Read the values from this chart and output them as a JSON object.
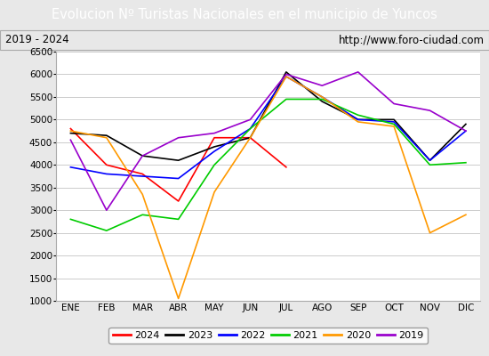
{
  "title": "Evolucion Nº Turistas Nacionales en el municipio de Yuncos",
  "subtitle_left": "2019 - 2024",
  "subtitle_right": "http://www.foro-ciudad.com",
  "title_bg_color": "#4472c4",
  "title_text_color": "#ffffff",
  "months": [
    "ENE",
    "FEB",
    "MAR",
    "ABR",
    "MAY",
    "JUN",
    "JUL",
    "AGO",
    "SEP",
    "OCT",
    "NOV",
    "DIC"
  ],
  "ylim": [
    1000,
    6500
  ],
  "yticks": [
    1000,
    1500,
    2000,
    2500,
    3000,
    3500,
    4000,
    4500,
    5000,
    5500,
    6000,
    6500
  ],
  "series": {
    "2024": {
      "color": "#ff0000",
      "values": [
        4800,
        4000,
        3800,
        3200,
        4600,
        4600,
        3950,
        null,
        null,
        null,
        null,
        null
      ]
    },
    "2023": {
      "color": "#000000",
      "values": [
        4700,
        4650,
        4200,
        4100,
        4400,
        4600,
        6050,
        5400,
        5000,
        5000,
        4100,
        4900
      ]
    },
    "2022": {
      "color": "#0000ff",
      "values": [
        3950,
        3800,
        3750,
        3700,
        4300,
        4800,
        5950,
        5500,
        5000,
        4950,
        4100,
        4750
      ]
    },
    "2021": {
      "color": "#00cc00",
      "values": [
        2800,
        2550,
        2900,
        2800,
        4000,
        4800,
        5450,
        5450,
        5100,
        4900,
        4000,
        4050
      ]
    },
    "2020": {
      "color": "#ff9900",
      "values": [
        4750,
        4600,
        3350,
        1050,
        3400,
        4600,
        5950,
        5500,
        4950,
        4850,
        2500,
        2900
      ]
    },
    "2019": {
      "color": "#9900cc",
      "values": [
        4550,
        3000,
        4200,
        4600,
        4700,
        5000,
        6000,
        5750,
        6050,
        5350,
        5200,
        4750
      ]
    }
  },
  "legend_order": [
    "2024",
    "2023",
    "2022",
    "2021",
    "2020",
    "2019"
  ],
  "bg_color": "#e8e8e8",
  "plot_bg_color": "#ffffff",
  "grid_color": "#cccccc",
  "title_fontsize": 10.5,
  "subtitle_fontsize": 8.5,
  "tick_fontsize": 7.5,
  "legend_fontsize": 8
}
